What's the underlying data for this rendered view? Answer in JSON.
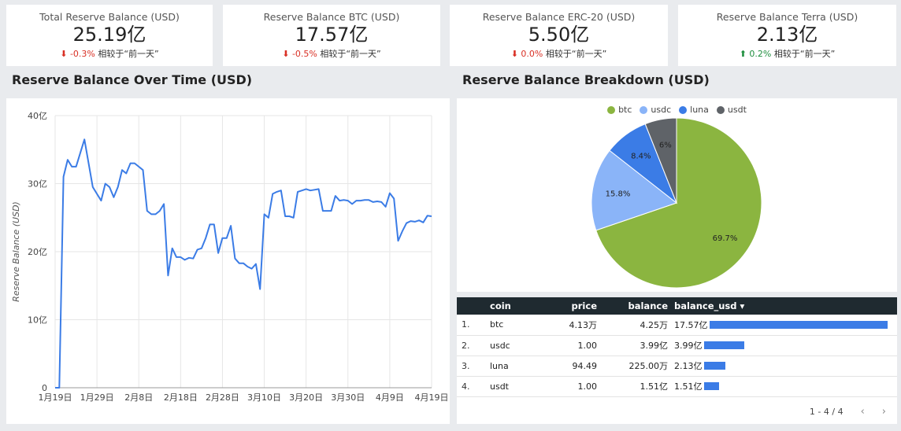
{
  "kpis": [
    {
      "label": "Total Reserve Balance (USD)",
      "value": "25.19亿",
      "arrow": "⬇",
      "change": "-0.3%",
      "direction": "down",
      "compare": "相较于“前一天”"
    },
    {
      "label": "Reserve Balance BTC (USD)",
      "value": "17.57亿",
      "arrow": "⬇",
      "change": "-0.5%",
      "direction": "down",
      "compare": "相较于“前一天”"
    },
    {
      "label": "Reserve Balance ERC-20 (USD)",
      "value": "5.50亿",
      "arrow": "⬇",
      "change": "0.0%",
      "direction": "down",
      "compare": "相较于“前一天”"
    },
    {
      "label": "Reserve Balance Terra (USD)",
      "value": "2.13亿",
      "arrow": "⬆",
      "change": "0.2%",
      "direction": "up",
      "compare": "相较于“前一天”"
    }
  ],
  "sections": {
    "line_title": "Reserve Balance Over Time (USD)",
    "pie_title": "Reserve Balance Breakdown (USD)"
  },
  "chart_data": [
    {
      "type": "line",
      "title": "Reserve Balance Over Time (USD)",
      "xlabel": "",
      "ylabel": "Reserve Balance (USD)",
      "ylim": [
        0,
        40
      ],
      "ytick_labels": [
        "0",
        "10亿",
        "20亿",
        "30亿",
        "40亿"
      ],
      "ytick_values": [
        0,
        10,
        20,
        30,
        40
      ],
      "xtick_labels": [
        "1月19日",
        "1月29日",
        "2月8日",
        "2月18日",
        "2月28日",
        "3月10日",
        "3月20日",
        "3月30日",
        "4月9日",
        "4月19日"
      ],
      "xlim": [
        0,
        90
      ],
      "grid": true,
      "color": "#3b7ce6",
      "series": [
        {
          "x": [
            0,
            1,
            2,
            3,
            4,
            5,
            6,
            7,
            8,
            9,
            10,
            11,
            12,
            13,
            14,
            15,
            16,
            17,
            18,
            19,
            20,
            21,
            22,
            23,
            24,
            25,
            26,
            27,
            28,
            29,
            30,
            31,
            32,
            33,
            34,
            35,
            36,
            37,
            38,
            39,
            40,
            41,
            42,
            43,
            44,
            45,
            46,
            47,
            48,
            49,
            50,
            51,
            52,
            53,
            54,
            55,
            56,
            57,
            58,
            59,
            60,
            61,
            62,
            63,
            64,
            65,
            66,
            67,
            68,
            69,
            70,
            71,
            72,
            73,
            74,
            75,
            76,
            77,
            78,
            79,
            80,
            81,
            82,
            83,
            84,
            85,
            86,
            87,
            88,
            89,
            90
          ],
          "y": [
            0,
            0,
            31,
            33.5,
            32.5,
            32.5,
            34.5,
            36.5,
            33,
            29.5,
            28.5,
            27.5,
            30,
            29.5,
            28,
            29.5,
            32,
            31.5,
            33,
            33,
            32.5,
            32,
            26,
            25.5,
            25.5,
            26,
            27,
            16.5,
            20.5,
            19.2,
            19.2,
            18.8,
            19.1,
            19,
            20.3,
            20.5,
            22,
            24,
            24,
            19.8,
            22,
            22,
            23.8,
            19,
            18.3,
            18.3,
            17.8,
            17.5,
            18.2,
            14.5,
            25.5,
            25,
            28.5,
            28.8,
            29,
            25.2,
            25.2,
            25,
            28.8,
            29,
            29.2,
            29,
            29.1,
            29.2,
            26,
            26,
            26,
            28.2,
            27.5,
            27.6,
            27.5,
            27,
            27.5,
            27.5,
            27.6,
            27.6,
            27.3,
            27.4,
            27.3,
            26.6,
            28.6,
            27.8,
            21.6,
            23,
            24.2,
            24.5,
            24.4,
            24.6,
            24.3,
            25.3,
            25.2
          ]
        }
      ]
    },
    {
      "type": "pie",
      "title": "Reserve Balance Breakdown (USD)",
      "legend_position": "top",
      "slices": [
        {
          "name": "btc",
          "value": 69.7,
          "label": "69.7%",
          "color": "#8bb540"
        },
        {
          "name": "usdc",
          "value": 15.8,
          "label": "15.8%",
          "color": "#8ab4f8"
        },
        {
          "name": "luna",
          "value": 8.4,
          "label": "8.4%",
          "color": "#3b7ce6"
        },
        {
          "name": "usdt",
          "value": 6.0,
          "label": "6%",
          "color": "#5f6368"
        }
      ]
    },
    {
      "type": "table",
      "columns": [
        "coin",
        "price",
        "balance",
        "balance_usd"
      ],
      "sort_indicator": "▾",
      "rows": [
        {
          "idx": "1.",
          "coin": "btc",
          "price": "4.13万",
          "balance": "4.25万",
          "balance_usd": "17.57亿",
          "bar": 1.0
        },
        {
          "idx": "2.",
          "coin": "usdc",
          "price": "1.00",
          "balance": "3.99亿",
          "balance_usd": "3.99亿",
          "bar": 0.227
        },
        {
          "idx": "3.",
          "coin": "luna",
          "price": "94.49",
          "balance": "225.00万",
          "balance_usd": "2.13亿",
          "bar": 0.121
        },
        {
          "idx": "4.",
          "coin": "usdt",
          "price": "1.00",
          "balance": "1.51亿",
          "balance_usd": "1.51亿",
          "bar": 0.086
        }
      ],
      "pagination": "1 - 4 / 4",
      "prev": "‹",
      "next": "›"
    }
  ]
}
